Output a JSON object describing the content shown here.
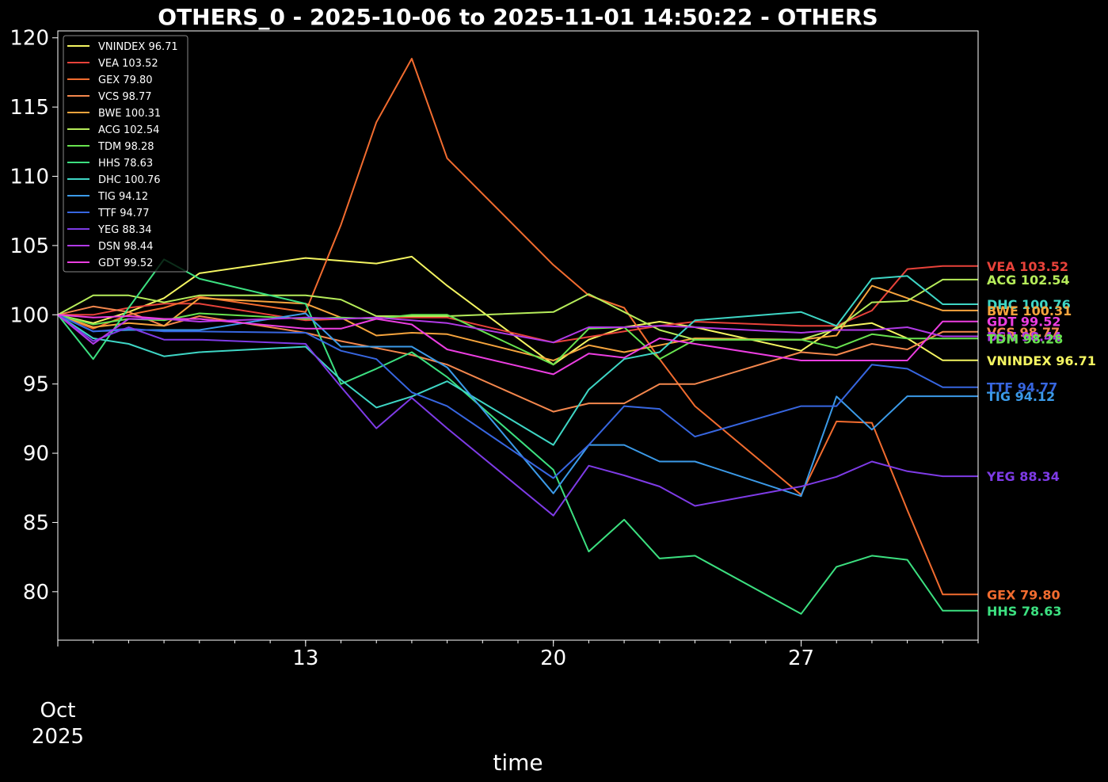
{
  "chart_data": {
    "type": "line",
    "title": "OTHERS_0 - 2025-10-06 to 2025-11-01 14:50:22 - OTHERS",
    "xlabel": "time",
    "ylabel": "",
    "ylim": [
      76.5,
      120.5
    ],
    "xlim": [
      "2025-10-06",
      "2025-11-01"
    ],
    "yticks": [
      80,
      85,
      90,
      95,
      100,
      105,
      110,
      115,
      120
    ],
    "xticks": [
      {
        "date": "2025-10-13",
        "label": "13"
      },
      {
        "date": "2025-10-20",
        "label": "20"
      },
      {
        "date": "2025-10-27",
        "label": "27"
      }
    ],
    "xtick_month": "Oct",
    "xtick_year": "2025",
    "legend_position": "top-left",
    "grid": false,
    "background": "#000000",
    "dates": [
      "2025-10-06",
      "2025-10-07",
      "2025-10-08",
      "2025-10-09",
      "2025-10-10",
      "2025-10-13",
      "2025-10-14",
      "2025-10-15",
      "2025-10-16",
      "2025-10-17",
      "2025-10-20",
      "2025-10-21",
      "2025-10-22",
      "2025-10-23",
      "2025-10-24",
      "2025-10-27",
      "2025-10-28",
      "2025-10-29",
      "2025-10-30",
      "2025-10-31",
      "2025-11-01"
    ],
    "series": [
      {
        "name": "VNINDEX 96.71",
        "color": "#f4f561",
        "values": [
          100,
          99.4,
          100.2,
          101.2,
          103,
          104.1,
          103.9,
          103.7,
          104.2,
          102.1,
          96.4,
          98.2,
          99.1,
          99.5,
          99.1,
          97.4,
          99.1,
          99.4,
          98.3,
          96.71,
          96.71
        ]
      },
      {
        "name": "VEA 103.52",
        "color": "#e8423a",
        "values": [
          100,
          100,
          100.5,
          100.8,
          100.8,
          99.6,
          99.7,
          99.8,
          99.8,
          99.8,
          98,
          98.4,
          98.8,
          99.2,
          99.5,
          99.2,
          99.2,
          100.3,
          103.3,
          103.52,
          103.52
        ]
      },
      {
        "name": "GEX 79.80",
        "color": "#f26c2f",
        "values": [
          100,
          99,
          100,
          100.5,
          101.3,
          100.2,
          106.5,
          113.9,
          118.5,
          111.3,
          103.6,
          101.4,
          100.5,
          96.8,
          93.4,
          87,
          92.3,
          92.2,
          85.9,
          79.8,
          79.8
        ]
      },
      {
        "name": "VCS 98.77",
        "color": "#f4874d",
        "values": [
          100,
          100.6,
          100.2,
          99.2,
          99.9,
          98.7,
          98.1,
          97.6,
          97.1,
          96.4,
          93,
          93.6,
          93.6,
          95,
          95,
          97.3,
          97.1,
          97.9,
          97.5,
          98.77,
          98.77
        ]
      },
      {
        "name": "BWE 100.31",
        "color": "#f6a43d",
        "values": [
          100,
          99.1,
          99.4,
          99.2,
          101.2,
          100.8,
          99.8,
          98.5,
          98.7,
          98.6,
          96.7,
          97.8,
          97.3,
          97.8,
          98.3,
          98.2,
          98.5,
          102.1,
          101.2,
          100.31,
          100.31
        ]
      },
      {
        "name": "ACG 102.54",
        "color": "#b6ec5a",
        "values": [
          100,
          101.4,
          101.4,
          100.9,
          101.4,
          101.4,
          101.1,
          99.9,
          99.9,
          99.9,
          100.2,
          101.5,
          100.2,
          98.9,
          98.2,
          98.2,
          99,
          100.9,
          101,
          102.54,
          102.54
        ]
      },
      {
        "name": "TDM 98.28",
        "color": "#68e34f",
        "values": [
          100,
          99.3,
          99.7,
          99.6,
          100.1,
          99.7,
          99.8,
          99.7,
          100,
          100,
          96.4,
          99,
          99.1,
          96.8,
          98.2,
          98.2,
          97.6,
          98.6,
          98.28,
          98.28,
          98.28
        ]
      },
      {
        "name": "HHS 78.63",
        "color": "#3ce080",
        "values": [
          100,
          96.8,
          100.5,
          104,
          102.6,
          100.8,
          95,
          96.1,
          97.3,
          95.5,
          88.8,
          82.9,
          85.2,
          82.4,
          82.6,
          78.4,
          81.8,
          82.6,
          82.3,
          78.63,
          78.63
        ]
      },
      {
        "name": "DHC 100.76",
        "color": "#3ed6c5",
        "values": [
          100,
          98.3,
          97.9,
          97,
          97.3,
          97.7,
          95.3,
          93.3,
          94.1,
          95.2,
          90.6,
          94.6,
          96.8,
          97.3,
          99.6,
          100.2,
          99.2,
          102.6,
          102.8,
          100.76,
          100.76
        ]
      },
      {
        "name": "TIG 94.12",
        "color": "#3b9ae8",
        "values": [
          100,
          98.8,
          98.9,
          98.9,
          98.9,
          100.1,
          97.7,
          97.7,
          97.7,
          96.2,
          87.1,
          90.6,
          90.6,
          89.4,
          89.4,
          86.9,
          94.1,
          91.7,
          94.12,
          94.12,
          94.12
        ]
      },
      {
        "name": "TTF 94.77",
        "color": "#3766e0",
        "values": [
          100,
          98.8,
          99,
          98.8,
          98.8,
          98.7,
          97.4,
          96.8,
          94.4,
          93.4,
          88.2,
          90.6,
          93.4,
          93.2,
          91.2,
          93.4,
          93.4,
          96.4,
          96.1,
          94.77,
          94.77
        ]
      },
      {
        "name": "YEG 88.34",
        "color": "#7e3be6",
        "values": [
          100,
          98.1,
          99.1,
          98.2,
          98.2,
          97.9,
          94.8,
          91.8,
          94,
          91.8,
          85.5,
          89.1,
          88.4,
          87.6,
          86.2,
          87.6,
          88.3,
          89.4,
          88.7,
          88.34,
          88.34
        ]
      },
      {
        "name": "DSN 98.44",
        "color": "#b13ae6",
        "values": [
          100,
          97.9,
          99.7,
          99.7,
          99.5,
          99.8,
          99.7,
          99.8,
          99.6,
          99.4,
          98,
          99.1,
          99.1,
          99.2,
          99.1,
          98.7,
          98.9,
          98.9,
          99.1,
          98.44,
          98.44
        ]
      },
      {
        "name": "GDT 99.52",
        "color": "#ec3ee1",
        "values": [
          100,
          99.8,
          99.9,
          99.7,
          99.7,
          99,
          99,
          99.7,
          99.3,
          97.5,
          95.7,
          97.2,
          96.9,
          98.3,
          97.9,
          96.7,
          96.7,
          96.7,
          96.7,
          99.52,
          99.52
        ]
      }
    ],
    "end_labels": [
      {
        "text": "VEA 103.52",
        "color": "#e8423a"
      },
      {
        "text": "ACG 102.54",
        "color": "#b6ec5a"
      },
      {
        "text": "DHC 100.76",
        "color": "#3ed6c5"
      },
      {
        "text": "BWE 100.31",
        "color": "#f6a43d"
      },
      {
        "text": "GDT 99.52",
        "color": "#ec3ee1"
      },
      {
        "text": "VCS 98.77",
        "color": "#f4874d"
      },
      {
        "text": "DSN 98.44",
        "color": "#b13ae6"
      },
      {
        "text": "TDM 98.28",
        "color": "#68e34f"
      },
      {
        "text": "VNINDEX 96.71",
        "color": "#f4f561"
      },
      {
        "text": "TTF 94.77",
        "color": "#3766e0"
      },
      {
        "text": "TIG 94.12",
        "color": "#3b9ae8"
      },
      {
        "text": "YEG 88.34",
        "color": "#7e3be6"
      },
      {
        "text": "GEX 79.80",
        "color": "#f26c2f"
      },
      {
        "text": "HHS 78.63",
        "color": "#3ce080"
      }
    ]
  }
}
